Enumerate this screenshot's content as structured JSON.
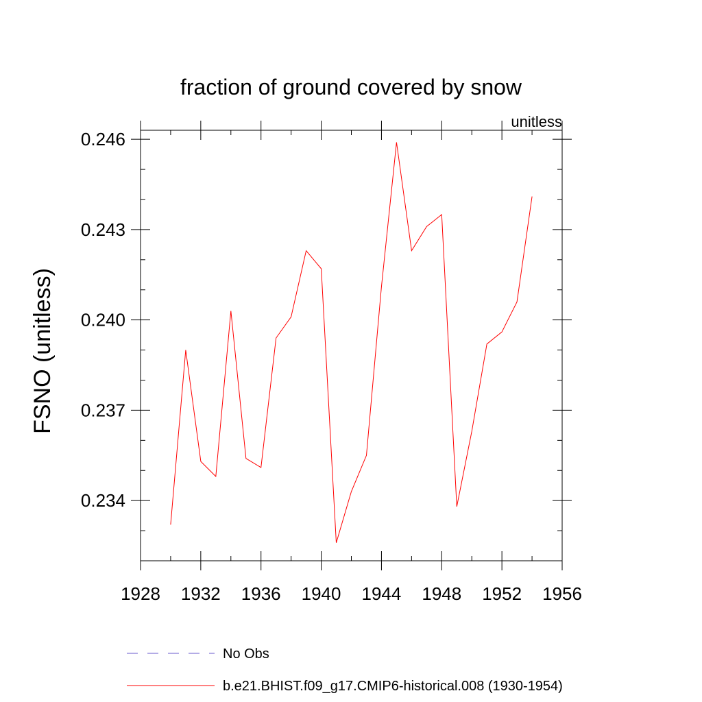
{
  "chart_data": {
    "type": "line",
    "title": "fraction of ground covered by snow",
    "units_label": "unitless",
    "ylabel": "FSNO  (unitless)",
    "xlabel": "",
    "xlim": [
      1928,
      1956
    ],
    "ylim": [
      0.232,
      0.2463
    ],
    "x_ticks": [
      1928,
      1932,
      1936,
      1940,
      1944,
      1948,
      1952,
      1956
    ],
    "x_tick_labels": [
      "1928",
      "1932",
      "1936",
      "1940",
      "1944",
      "1948",
      "1952",
      "1956"
    ],
    "y_ticks": [
      0.234,
      0.237,
      0.24,
      0.243,
      0.246
    ],
    "y_tick_labels": [
      "0.234",
      "0.237",
      "0.240",
      "0.243",
      "0.246"
    ],
    "y_minor_step": 0.001,
    "x_minor_step": 2,
    "grid": false,
    "legend_position": "bottom",
    "series": [
      {
        "name": "b.e21.BHIST.f09_g17.CMIP6-historical.008 (1930-1954)",
        "color": "#ff0000",
        "x": [
          1930,
          1931,
          1932,
          1933,
          1934,
          1935,
          1936,
          1937,
          1938,
          1939,
          1940,
          1941,
          1942,
          1943,
          1944,
          1945,
          1946,
          1947,
          1948,
          1949,
          1950,
          1951,
          1952,
          1953,
          1954
        ],
        "y": [
          0.2332,
          0.239,
          0.2353,
          0.2348,
          0.2403,
          0.2354,
          0.2351,
          0.2394,
          0.2401,
          0.2423,
          0.2417,
          0.2326,
          0.2343,
          0.2355,
          0.2411,
          0.2459,
          0.2423,
          0.2431,
          0.2435,
          0.2338,
          0.2363,
          0.2392,
          0.2396,
          0.2406,
          0.2441
        ]
      }
    ],
    "legend": [
      {
        "label": "No Obs",
        "color": "#6a5acd",
        "style": "dashed"
      },
      {
        "label": "b.e21.BHIST.f09_g17.CMIP6-historical.008 (1930-1954)",
        "color": "#ff0000",
        "style": "solid"
      }
    ]
  }
}
